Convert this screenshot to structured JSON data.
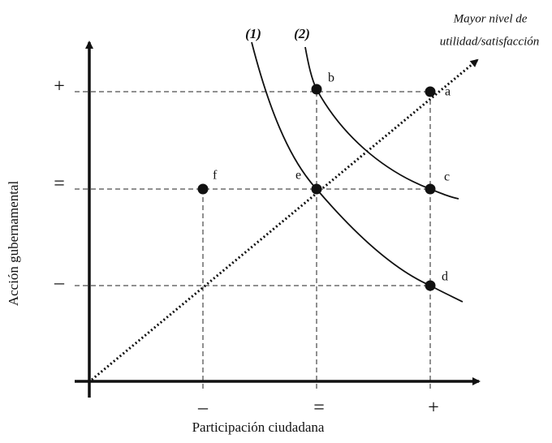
{
  "annotation": [
    "Mayor nivel de",
    "utilidad/satisfacción"
  ],
  "curves": [
    "(1)",
    "(2)"
  ],
  "points": [
    "a",
    "b",
    "c",
    "d",
    "e",
    "f"
  ],
  "y_axis": {
    "title": "Acción gubernamental",
    "ticks": [
      "+",
      "=",
      "–"
    ]
  },
  "x_axis": {
    "title": "Participación ciudadana",
    "ticks": [
      "–",
      "=",
      "+"
    ]
  }
}
